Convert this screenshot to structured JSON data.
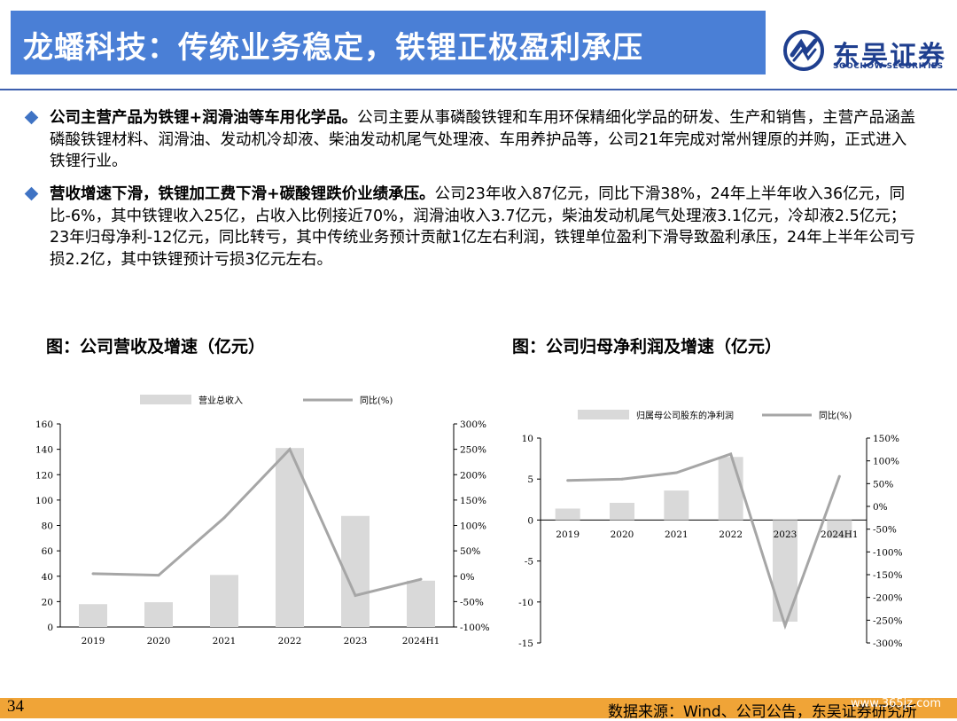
{
  "header": {
    "title": "龙蟠科技：传统业务稳定，铁锂正极盈利承压",
    "logo_cn": "东吴证券",
    "logo_en": "SOOCHOW SECURITIES",
    "brand_color": "#4a7fd6"
  },
  "bullets": [
    {
      "bold": "公司主营产品为铁锂+润滑油等车用化学品。",
      "text": "公司主要从事磷酸铁锂和车用环保精细化学品的研发、生产和销售，主营产品涵盖磷酸铁锂材料、润滑油、发动机冷却液、柴油发动机尾气处理液、车用养护品等，公司21年完成对常州锂原的并购，正式进入铁锂行业。"
    },
    {
      "bold": "营收增速下滑，铁锂加工费下滑+碳酸锂跌价业绩承压。",
      "text": "公司23年收入87亿元，同比下滑38%，24年上半年收入36亿元，同比-6%，其中铁锂收入25亿，占收入比例接近70%，润滑油收入3.7亿元，柴油发动机尾气处理液3.1亿元，冷却液2.5亿元；23年归母净利-12亿元，同比转亏，其中传统业务预计贡献1亿左右利润，铁锂单位盈利下滑导致盈利承压，24年上半年公司亏损2.2亿，其中铁锂预计亏损3亿元左右。"
    }
  ],
  "chart_titles": {
    "left": "图：公司营收及增速（亿元）",
    "right": "图：公司归母净利润及增速（亿元）"
  },
  "chart_data": [
    {
      "type": "bar",
      "categories": [
        "2019",
        "2020",
        "2021",
        "2022",
        "2023",
        "2024H1"
      ],
      "series": [
        {
          "name": "营业总收入",
          "type": "bar",
          "axis": "left",
          "values": [
            18,
            19.5,
            41,
            141,
            87.5,
            36.5
          ],
          "color": "#d9d9d9"
        },
        {
          "name": "同比(%)",
          "type": "line",
          "axis": "right",
          "values": [
            5,
            2,
            115,
            250,
            -38,
            -6
          ],
          "color": "#a6a6a6"
        }
      ],
      "y_left": {
        "range": [
          0,
          160
        ],
        "ticks": [
          "0",
          "20",
          "40",
          "60",
          "80",
          "100",
          "120",
          "140",
          "160"
        ]
      },
      "y_right": {
        "range": [
          -100,
          300
        ],
        "ticks": [
          "-100%",
          "-50%",
          "0%",
          "50%",
          "100%",
          "150%",
          "200%",
          "250%",
          "300%"
        ]
      },
      "legend": "top"
    },
    {
      "type": "bar",
      "categories": [
        "2019",
        "2020",
        "2021",
        "2022",
        "2023",
        "2024H1"
      ],
      "series": [
        {
          "name": "归属母公司股东的净利润",
          "type": "bar",
          "axis": "left",
          "values": [
            1.4,
            2.1,
            3.6,
            7.7,
            -12.4,
            -2.2
          ],
          "color": "#d9d9d9"
        },
        {
          "name": "同比(%)",
          "type": "line",
          "axis": "right",
          "values": [
            57,
            60,
            74,
            115,
            -262,
            66
          ],
          "color": "#a6a6a6"
        }
      ],
      "y_left": {
        "range": [
          -15,
          10
        ],
        "ticks": [
          "-15",
          "-10",
          "-5",
          "0",
          "5",
          "10"
        ]
      },
      "y_right": {
        "range": [
          -300,
          150
        ],
        "ticks": [
          "-300%",
          "-250%",
          "-200%",
          "-150%",
          "-100%",
          "-50%",
          "0%",
          "50%",
          "100%",
          "150%"
        ]
      },
      "legend": "top"
    }
  ],
  "footer": {
    "page": "34",
    "source": "数据来源：Wind、公司公告，东吴证券研究所",
    "watermark": "www.365jz.com",
    "accent": "#f0a437"
  }
}
